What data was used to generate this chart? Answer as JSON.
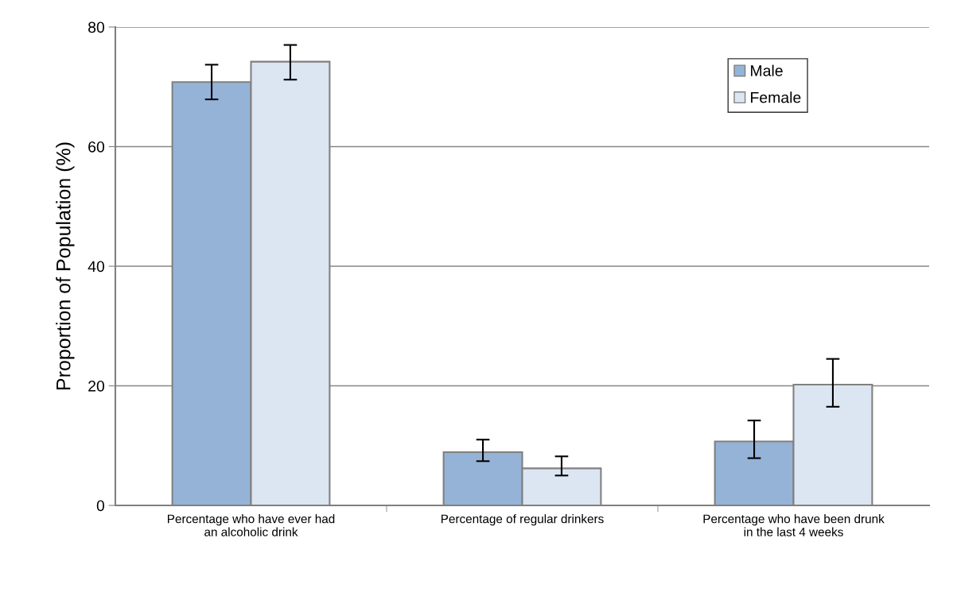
{
  "chart_data": {
    "type": "bar",
    "ylabel": "Proportion of Population (%)",
    "categories": [
      "Percentage who have ever had\nan alcoholic drink",
      "Percentage of regular drinkers",
      "Percentage who have been drunk\nin the last 4 weeks"
    ],
    "series": [
      {
        "name": "Male",
        "color": "#95b3d7",
        "values": [
          70.8,
          8.9,
          10.7
        ],
        "errors": [
          [
            67.9,
            73.7
          ],
          [
            7.4,
            11.0
          ],
          [
            7.9,
            14.2
          ]
        ]
      },
      {
        "name": "Female",
        "color": "#dce6f2",
        "values": [
          74.2,
          6.2,
          20.2
        ],
        "errors": [
          [
            71.2,
            77.0
          ],
          [
            5.0,
            8.2
          ],
          [
            16.5,
            24.5
          ]
        ]
      }
    ],
    "ylim": [
      0,
      80
    ],
    "yticks": [
      0,
      20,
      40,
      60,
      80
    ],
    "grid": "y",
    "legend": "top right"
  }
}
